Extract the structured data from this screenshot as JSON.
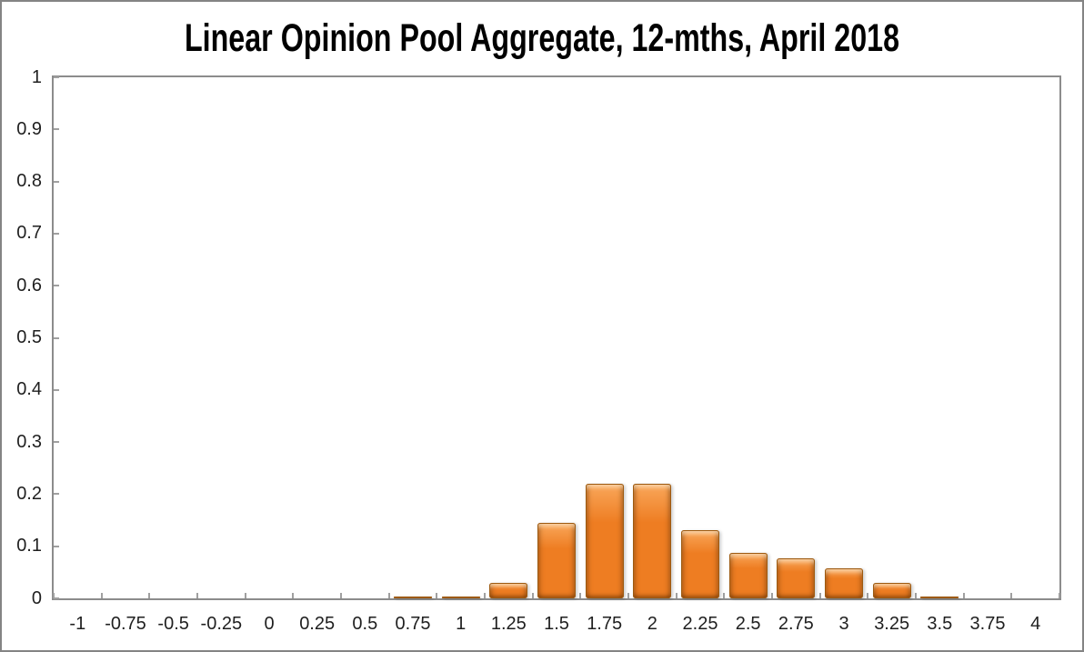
{
  "title": "Linear Opinion Pool Aggregate, 12-mths, April 2018",
  "chart_data": {
    "type": "bar",
    "title": "Linear Opinion Pool Aggregate, 12-mths, April 2018",
    "xlabel": "",
    "ylabel": "",
    "categories": [
      "-1",
      "-0.75",
      "-0.5",
      "-0.25",
      "0",
      "0.25",
      "0.5",
      "0.75",
      "1",
      "1.25",
      "1.5",
      "1.75",
      "2",
      "2.25",
      "2.5",
      "2.75",
      "3",
      "3.25",
      "3.5",
      "3.75",
      "4"
    ],
    "values": [
      0,
      0,
      0,
      0,
      0,
      0,
      0,
      0.003,
      0.003,
      0.03,
      0.144,
      0.22,
      0.22,
      0.131,
      0.088,
      0.077,
      0.057,
      0.029,
      0.003,
      0,
      0
    ],
    "ylim": [
      0,
      1
    ],
    "ytick_step": 0.1,
    "y_tick_labels": [
      "0",
      "0.1",
      "0.2",
      "0.3",
      "0.4",
      "0.5",
      "0.6",
      "0.7",
      "0.8",
      "0.9",
      "1"
    ],
    "grid": false,
    "legend": false,
    "colors": {
      "bar_fill": "#EE7D22",
      "bar_highlight": "#F9A85B",
      "bar_edge": "#9E5A10",
      "plot_border": "#8C8C8C",
      "frame_border": "#848484",
      "tick": "#A0A0A0",
      "label_text": "#1F1F1F",
      "title_text": "#000000",
      "background": "#FFFFFF"
    }
  }
}
